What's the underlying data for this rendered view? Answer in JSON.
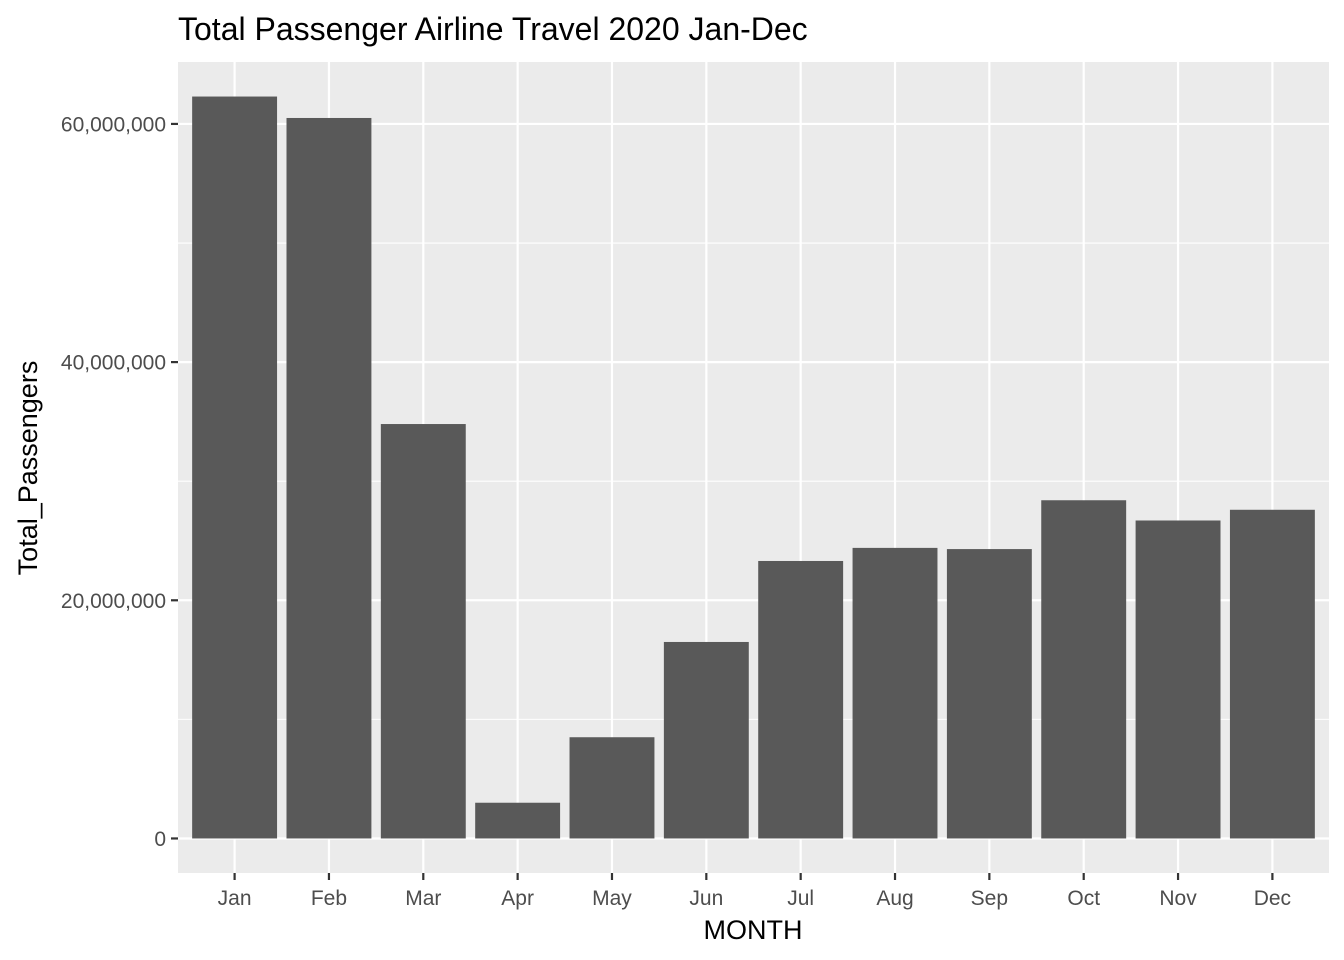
{
  "chart_data": {
    "type": "bar",
    "title": "Total Passenger Airline Travel 2020 Jan-Dec",
    "xlabel": "MONTH",
    "ylabel": "Total_Passengers",
    "categories": [
      "Jan",
      "Feb",
      "Mar",
      "Apr",
      "May",
      "Jun",
      "Jul",
      "Aug",
      "Sep",
      "Oct",
      "Nov",
      "Dec"
    ],
    "values": [
      62300000,
      60500000,
      34800000,
      3000000,
      8500000,
      16500000,
      23300000,
      24400000,
      24300000,
      28400000,
      26700000,
      27600000
    ],
    "ylim": [
      -2900000,
      65200000
    ],
    "y_ticks": [
      0,
      20000000,
      40000000,
      60000000
    ],
    "y_tick_labels": [
      "0",
      "20,000,000",
      "40,000,000",
      "60,000,000"
    ],
    "y_minor_ticks": [
      10000000,
      30000000,
      50000000
    ],
    "grid": true,
    "legend": "none",
    "colors": {
      "panel_background": "#ebebeb",
      "grid": "#ffffff",
      "bar": "#595959",
      "tick_text": "#4d4d4d",
      "tick_mark": "#333333",
      "text": "#000000"
    }
  }
}
